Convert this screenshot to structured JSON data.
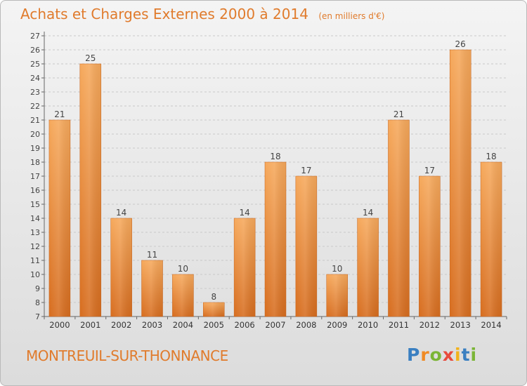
{
  "header": {
    "title": "Achats et Charges Externes 2000 à 2014",
    "subtitle": "(en milliers d'€)"
  },
  "footer": {
    "commune": "MONTREUIL-SUR-THONNANCE",
    "logo_text": "Proxiti"
  },
  "colors": {
    "accent": "#e07b2c",
    "bar_top": "#f6a95c",
    "bar_bottom": "#d76d1f"
  },
  "chart_data": {
    "type": "bar",
    "categories": [
      "2000",
      "2001",
      "2002",
      "2003",
      "2004",
      "2005",
      "2006",
      "2007",
      "2008",
      "2009",
      "2010",
      "2011",
      "2012",
      "2013",
      "2014"
    ],
    "values": [
      21,
      25,
      14,
      11,
      10,
      8,
      14,
      18,
      17,
      10,
      14,
      21,
      17,
      26,
      18
    ],
    "data_labels": [
      "21",
      "25",
      "14",
      "11",
      "10",
      "8",
      "14",
      "18",
      "17",
      "10",
      "14",
      "21",
      "17",
      "26",
      "18"
    ],
    "title": "Achats et Charges Externes 2000 à 2014",
    "subtitle": "(en milliers d'€)",
    "xlabel": "",
    "ylabel": "",
    "ylim": [
      7,
      27
    ],
    "yticks": [
      7,
      8,
      9,
      10,
      11,
      12,
      13,
      14,
      15,
      16,
      17,
      18,
      19,
      20,
      21,
      22,
      23,
      24,
      25,
      26,
      27
    ],
    "grid": true,
    "legend": "none"
  }
}
